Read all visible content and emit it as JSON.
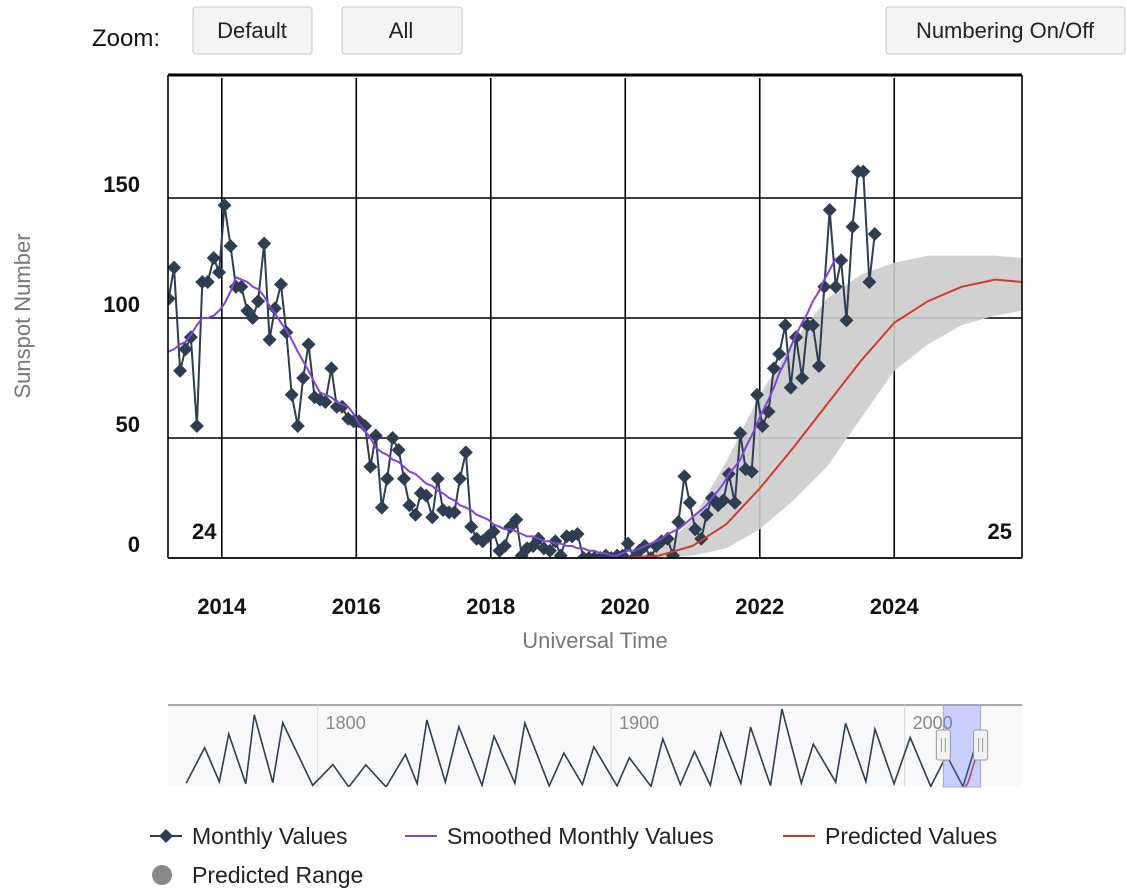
{
  "controls": {
    "zoom_label": "Zoom:",
    "buttons": [
      "Default",
      "All"
    ],
    "numbering": "Numbering On/Off"
  },
  "chart_data": [
    {
      "type": "line",
      "x_label": "Universal Time",
      "y_label": "Sunspot Number",
      "xlim": [
        2013.2,
        2025.9
      ],
      "ylim": [
        0,
        200
      ],
      "xticks": [
        2014,
        2016,
        2018,
        2020,
        2022,
        2024
      ],
      "yticks": [
        0,
        50,
        100,
        150
      ],
      "grid": true,
      "cycle_labels": [
        "24",
        "25"
      ],
      "series": [
        {
          "name": "Monthly Values",
          "color": "#2e3e50",
          "marker": "diamond",
          "x": [
            2013.21,
            2013.29,
            2013.38,
            2013.46,
            2013.54,
            2013.63,
            2013.71,
            2013.79,
            2013.88,
            2013.96,
            2014.04,
            2014.13,
            2014.21,
            2014.29,
            2014.38,
            2014.46,
            2014.54,
            2014.63,
            2014.71,
            2014.79,
            2014.88,
            2014.96,
            2015.04,
            2015.13,
            2015.21,
            2015.29,
            2015.38,
            2015.46,
            2015.54,
            2015.63,
            2015.71,
            2015.79,
            2015.88,
            2015.96,
            2016.04,
            2016.13,
            2016.21,
            2016.29,
            2016.38,
            2016.46,
            2016.54,
            2016.63,
            2016.71,
            2016.79,
            2016.88,
            2016.96,
            2017.04,
            2017.13,
            2017.21,
            2017.29,
            2017.38,
            2017.46,
            2017.54,
            2017.63,
            2017.71,
            2017.79,
            2017.88,
            2017.96,
            2018.04,
            2018.13,
            2018.21,
            2018.29,
            2018.38,
            2018.46,
            2018.54,
            2018.63,
            2018.71,
            2018.79,
            2018.88,
            2018.96,
            2019.04,
            2019.13,
            2019.21,
            2019.29,
            2019.38,
            2019.46,
            2019.54,
            2019.63,
            2019.71,
            2019.79,
            2019.88,
            2019.96,
            2020.04,
            2020.13,
            2020.21,
            2020.29,
            2020.38,
            2020.46,
            2020.54,
            2020.63,
            2020.71,
            2020.79,
            2020.88,
            2020.96,
            2021.04,
            2021.13,
            2021.21,
            2021.29,
            2021.38,
            2021.46,
            2021.54,
            2021.63,
            2021.71,
            2021.79,
            2021.88,
            2021.96,
            2022.04,
            2022.13,
            2022.21,
            2022.29,
            2022.38,
            2022.46,
            2022.54,
            2022.63,
            2022.71,
            2022.79,
            2022.88,
            2022.96,
            2023.04,
            2023.13,
            2023.21,
            2023.29,
            2023.38,
            2023.46,
            2023.54,
            2023.63,
            2023.71
          ],
          "values": [
            108,
            121,
            78,
            87,
            92,
            55,
            115,
            115,
            125,
            119,
            147,
            130,
            113,
            113,
            103,
            100,
            107,
            131,
            91,
            104,
            114,
            94,
            68,
            55,
            75,
            89,
            67,
            66,
            65,
            79,
            63,
            63,
            58,
            57,
            57,
            55,
            38,
            51,
            21,
            33,
            50,
            45,
            33,
            22,
            18,
            27,
            26,
            17,
            33,
            20,
            19,
            19,
            33,
            44,
            13,
            8,
            7,
            9,
            11,
            3,
            5,
            13,
            16,
            1,
            4,
            5,
            8,
            4,
            3,
            7,
            1,
            9,
            9,
            10,
            0,
            0,
            0,
            0,
            1,
            0,
            1,
            1,
            6,
            0,
            3,
            5,
            0,
            5,
            7,
            8,
            1,
            15,
            34,
            23,
            12,
            8,
            18,
            25,
            22,
            24,
            35,
            23,
            52,
            37,
            36,
            68,
            55,
            61,
            79,
            85,
            97,
            71,
            92,
            75,
            97,
            97,
            80,
            113,
            145,
            113,
            124,
            99,
            138,
            161,
            161,
            115,
            135
          ]
        },
        {
          "name": "Smoothed Monthly Values",
          "color": "#7d45e0",
          "x": [
            2013.21,
            2013.29,
            2013.38,
            2013.46,
            2013.54,
            2013.63,
            2013.71,
            2013.79,
            2013.88,
            2013.96,
            2014.04,
            2014.13,
            2014.21,
            2014.29,
            2014.38,
            2014.46,
            2014.54,
            2014.63,
            2014.71,
            2014.79,
            2014.88,
            2014.96,
            2015.04,
            2015.13,
            2015.21,
            2015.29,
            2015.38,
            2015.46,
            2015.54,
            2015.63,
            2015.71,
            2015.79,
            2015.88,
            2015.96,
            2016.04,
            2016.13,
            2016.21,
            2016.29,
            2016.38,
            2016.46,
            2016.54,
            2016.63,
            2016.71,
            2016.79,
            2016.88,
            2016.96,
            2017.04,
            2017.13,
            2017.21,
            2017.29,
            2017.38,
            2017.46,
            2017.54,
            2017.63,
            2017.71,
            2017.79,
            2017.88,
            2017.96,
            2018.04,
            2018.13,
            2018.21,
            2018.29,
            2018.38,
            2018.46,
            2018.54,
            2018.63,
            2018.71,
            2018.79,
            2018.88,
            2018.96,
            2019.04,
            2019.13,
            2019.21,
            2019.29,
            2019.38,
            2019.46,
            2019.54,
            2019.63,
            2019.71,
            2019.79,
            2019.88,
            2019.96,
            2020.04,
            2020.13,
            2020.21,
            2020.29,
            2020.38,
            2020.46,
            2020.54,
            2020.63,
            2020.71,
            2020.79,
            2020.88,
            2020.96,
            2021.04,
            2021.13,
            2021.21,
            2021.29,
            2021.38,
            2021.46,
            2021.54,
            2021.63,
            2021.71,
            2021.79,
            2021.88,
            2021.96,
            2022.04,
            2022.13,
            2022.21,
            2022.29,
            2022.38,
            2022.46,
            2022.54,
            2022.63,
            2022.71,
            2022.79,
            2022.88,
            2022.96,
            2023.04,
            2023.13
          ],
          "values": [
            86,
            87,
            89,
            90,
            93,
            97,
            100,
            100,
            101,
            103,
            106,
            111,
            117,
            116,
            115,
            113,
            112,
            109,
            105,
            102,
            98,
            95,
            91,
            86,
            82,
            78,
            73,
            69,
            68,
            67,
            65,
            64,
            63,
            60,
            56,
            53,
            50,
            46,
            44,
            43,
            41,
            40,
            38,
            36,
            35,
            33,
            31,
            30,
            28,
            27,
            25,
            24,
            22,
            21,
            20,
            18,
            17,
            16,
            14,
            13,
            12,
            12,
            11,
            10,
            9,
            9,
            8,
            7,
            7,
            6,
            6,
            5,
            5,
            4,
            4,
            3,
            3,
            2,
            2,
            1,
            1,
            2,
            3,
            3,
            4,
            5,
            6,
            7,
            8,
            10,
            11,
            12,
            14,
            16,
            18,
            20,
            22,
            25,
            28,
            31,
            35,
            38,
            41,
            46,
            51,
            56,
            61,
            66,
            71,
            77,
            82,
            88,
            93,
            98,
            102,
            107,
            111,
            116,
            120,
            125
          ]
        },
        {
          "name": "Predicted Values",
          "color": "#d23a2c",
          "x": [
            2020.0,
            2020.5,
            2021.0,
            2021.5,
            2022.0,
            2022.5,
            2023.0,
            2023.5,
            2024.0,
            2024.5,
            2025.0,
            2025.5,
            2025.9
          ],
          "values": [
            0,
            1,
            5,
            14,
            29,
            46,
            64,
            82,
            98,
            107,
            113,
            116,
            115
          ]
        },
        {
          "name": "Predicted Range",
          "color": "#cccccc",
          "x": [
            2020.0,
            2020.5,
            2021.0,
            2021.5,
            2022.0,
            2022.5,
            2023.0,
            2023.5,
            2024.0,
            2024.5,
            2025.0,
            2025.5,
            2025.9
          ],
          "lower": [
            0,
            0,
            1,
            4,
            12,
            24,
            38,
            58,
            78,
            89,
            97,
            101,
            103
          ],
          "upper": [
            0,
            3,
            16,
            40,
            68,
            90,
            108,
            118,
            123,
            126,
            126,
            126,
            125
          ]
        }
      ]
    },
    {
      "type": "line",
      "xlim": [
        1749,
        2040
      ],
      "ylim": [
        0,
        300
      ],
      "xticks": [
        1800,
        1900,
        2000
      ],
      "grid": true,
      "series": [
        {
          "color": "#2e3e50",
          "x": [
            1755.2,
            1761.5,
            1766.5,
            1769.7,
            1775.5,
            1778.4,
            1784.7,
            1788.1,
            1798.3,
            1805.2,
            1810.6,
            1816.4,
            1823.3,
            1829.9,
            1833.9,
            1837.2,
            1843.5,
            1848.1,
            1856.0,
            1860.1,
            1867.2,
            1870.6,
            1878.9,
            1883.9,
            1890.2,
            1894.1,
            1902.0,
            1906.2,
            1913.6,
            1917.6,
            1923.6,
            1928.4,
            1933.8,
            1937.4,
            1944.2,
            1947.5,
            1954.3,
            1958.2,
            1964.8,
            1968.9,
            1976.5,
            1979.9,
            1986.8,
            1989.9,
            1996.4,
            2001.9,
            2008.9,
            2014.3,
            2019.9,
            2023.7
          ],
          "values": [
            14,
            144,
            19,
            194,
            12,
            264,
            16,
            235,
            6,
            82,
            0,
            81,
            0,
            119,
            12,
            245,
            18,
            220,
            6,
            186,
            14,
            234,
            4,
            124,
            9,
            147,
            4,
            107,
            2,
            176,
            9,
            130,
            6,
            199,
            13,
            219,
            5,
            285,
            14,
            157,
            18,
            233,
            20,
            212,
            12,
            181,
            2,
            116,
            2,
            135
          ]
        }
      ]
    }
  ]
}
